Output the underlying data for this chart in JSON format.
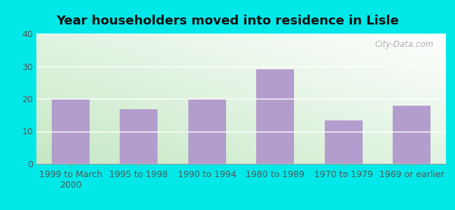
{
  "title": "Year householders moved into residence in Lisle",
  "categories": [
    "1999 to March\n2000",
    "1995 to 1998",
    "1990 to 1994",
    "1980 to 1989",
    "1970 to 1979",
    "1969 or earlier"
  ],
  "values": [
    20,
    16.7,
    20,
    29,
    13.3,
    17.8
  ],
  "bar_color": "#b39dcc",
  "ylim": [
    0,
    40
  ],
  "yticks": [
    0,
    10,
    20,
    30,
    40
  ],
  "background_outer": "#00e8e8",
  "grid_color": "#ffffff",
  "title_fontsize": 13,
  "tick_fontsize": 9,
  "watermark": "City-Data.com",
  "bg_gradient_left": "#c8e6c8",
  "bg_gradient_right": "#f0f8f0",
  "bg_top": "#f8fdf8",
  "fig_width": 6.5,
  "fig_height": 3.0
}
